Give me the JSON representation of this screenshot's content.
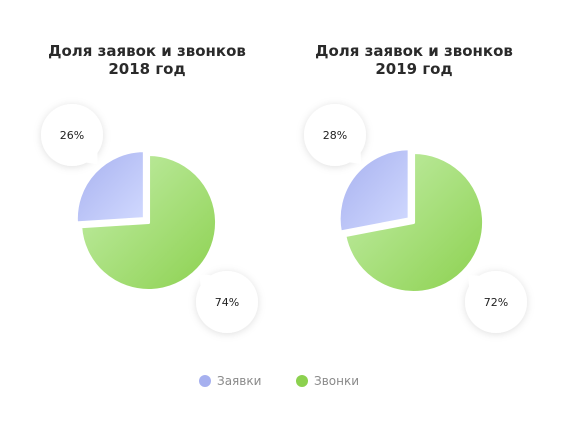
{
  "chart_data": [
    {
      "type": "pie",
      "title": [
        "Доля заявок и звонков",
        "2018 год"
      ],
      "categories": [
        "Заявки",
        "Звонки"
      ],
      "values": [
        26,
        74
      ],
      "labels": [
        "26%",
        "74%"
      ]
    },
    {
      "type": "pie",
      "title": [
        "Доля заявок и звонков",
        "2019 год"
      ],
      "categories": [
        "Заявки",
        "Звонки"
      ],
      "values": [
        28,
        72
      ],
      "labels": [
        "28%",
        "72%"
      ]
    }
  ],
  "legend": {
    "placement": "bottom-center",
    "items": [
      {
        "label": "Заявки",
        "color": "#a6b0ef"
      },
      {
        "label": "Звонки",
        "color": "#8cd14f"
      }
    ]
  },
  "colors": {
    "zayavki_light": "#d2daff",
    "zayavki_dark": "#a6b0ef",
    "zvonki_light": "#c6efad",
    "zvonki_dark": "#8cd14f",
    "label_text": "#222222"
  }
}
